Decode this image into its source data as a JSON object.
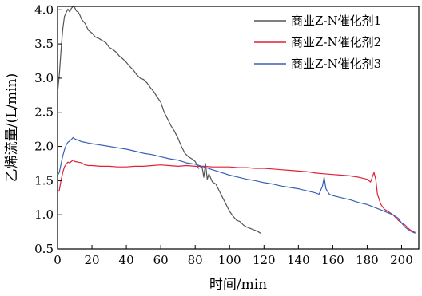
{
  "chart_data": {
    "type": "line",
    "title": "",
    "xlabel": "时间/min",
    "ylabel": "乙烯流量/(L/min)",
    "xlim": [
      0,
      210
    ],
    "ylim": [
      0.5,
      4.05
    ],
    "xticks": [
      "0",
      "20",
      "40",
      "60",
      "80",
      "100",
      "120",
      "140",
      "160",
      "180",
      "200"
    ],
    "yticks": [
      "0.5",
      "1.0",
      "1.5",
      "2.0",
      "2.5",
      "3.0",
      "3.5",
      "4.0"
    ],
    "grid": false,
    "legend_position": "top-right",
    "series": [
      {
        "name": "商业Z-N催化剂1",
        "color": "#555555",
        "x": [
          0,
          1,
          2,
          3,
          4,
          5,
          6,
          7,
          8,
          9,
          10,
          11,
          12,
          13,
          14,
          16,
          18,
          20,
          22,
          24,
          26,
          28,
          30,
          32,
          34,
          36,
          38,
          40,
          42,
          44,
          46,
          48,
          50,
          52,
          54,
          56,
          58,
          60,
          62,
          64,
          66,
          68,
          70,
          72,
          74,
          76,
          78,
          80,
          82,
          84,
          85,
          86,
          87,
          88,
          90,
          92,
          94,
          96,
          98,
          100,
          102,
          104,
          106,
          108,
          110,
          112,
          114,
          116,
          118
        ],
        "y": [
          2.78,
          3.05,
          3.4,
          3.72,
          3.9,
          3.96,
          4.01,
          3.97,
          4.02,
          4.05,
          4.03,
          3.98,
          3.97,
          3.92,
          3.86,
          3.8,
          3.7,
          3.66,
          3.6,
          3.58,
          3.55,
          3.52,
          3.45,
          3.42,
          3.38,
          3.32,
          3.28,
          3.23,
          3.17,
          3.12,
          3.05,
          3.0,
          2.98,
          2.93,
          2.86,
          2.8,
          2.72,
          2.65,
          2.5,
          2.4,
          2.3,
          2.22,
          2.12,
          2.0,
          1.9,
          1.85,
          1.82,
          1.78,
          1.68,
          1.7,
          1.55,
          1.75,
          1.52,
          1.6,
          1.48,
          1.45,
          1.35,
          1.25,
          1.15,
          1.05,
          0.98,
          0.92,
          0.9,
          0.85,
          0.82,
          0.8,
          0.78,
          0.76,
          0.73
        ]
      },
      {
        "name": "商业Z-N催化剂2",
        "color": "#e0203a",
        "x": [
          0,
          1,
          2,
          3,
          4,
          5,
          6,
          7,
          8,
          9,
          10,
          12,
          14,
          16,
          18,
          20,
          25,
          30,
          35,
          40,
          45,
          50,
          55,
          60,
          65,
          70,
          75,
          80,
          85,
          90,
          95,
          100,
          105,
          110,
          115,
          120,
          125,
          130,
          135,
          140,
          145,
          150,
          155,
          160,
          165,
          170,
          175,
          180,
          182,
          184,
          185,
          186,
          188,
          190,
          192,
          195,
          198,
          200,
          202,
          204,
          206,
          208
        ],
        "y": [
          1.33,
          1.36,
          1.5,
          1.62,
          1.7,
          1.74,
          1.77,
          1.76,
          1.78,
          1.8,
          1.78,
          1.77,
          1.76,
          1.73,
          1.72,
          1.72,
          1.71,
          1.71,
          1.7,
          1.7,
          1.71,
          1.71,
          1.72,
          1.73,
          1.72,
          1.71,
          1.72,
          1.71,
          1.71,
          1.7,
          1.7,
          1.7,
          1.69,
          1.69,
          1.68,
          1.68,
          1.67,
          1.66,
          1.65,
          1.64,
          1.63,
          1.61,
          1.6,
          1.59,
          1.58,
          1.57,
          1.55,
          1.52,
          1.48,
          1.62,
          1.52,
          1.3,
          1.15,
          1.08,
          1.05,
          1.0,
          0.92,
          0.88,
          0.85,
          0.8,
          0.76,
          0.74
        ]
      },
      {
        "name": "商业Z-N催化剂3",
        "color": "#3a5fb8",
        "x": [
          0,
          1,
          2,
          3,
          4,
          5,
          6,
          7,
          8,
          9,
          10,
          12,
          14,
          16,
          18,
          20,
          25,
          30,
          35,
          40,
          45,
          50,
          55,
          60,
          65,
          70,
          75,
          80,
          85,
          90,
          95,
          100,
          105,
          110,
          115,
          120,
          125,
          130,
          135,
          140,
          145,
          150,
          152,
          154,
          155,
          156,
          158,
          160,
          165,
          170,
          175,
          180,
          185,
          190,
          195,
          198,
          200,
          202,
          204,
          206,
          208
        ],
        "y": [
          1.58,
          1.62,
          1.74,
          1.86,
          1.95,
          2.02,
          2.06,
          2.08,
          2.1,
          2.13,
          2.11,
          2.09,
          2.07,
          2.06,
          2.05,
          2.04,
          2.02,
          2.0,
          1.98,
          1.96,
          1.93,
          1.9,
          1.88,
          1.85,
          1.82,
          1.8,
          1.76,
          1.74,
          1.7,
          1.66,
          1.62,
          1.58,
          1.55,
          1.52,
          1.5,
          1.47,
          1.45,
          1.42,
          1.4,
          1.38,
          1.35,
          1.32,
          1.3,
          1.42,
          1.55,
          1.38,
          1.3,
          1.28,
          1.25,
          1.22,
          1.18,
          1.15,
          1.1,
          1.05,
          1.0,
          0.95,
          0.88,
          0.82,
          0.78,
          0.75,
          0.73
        ]
      }
    ]
  }
}
